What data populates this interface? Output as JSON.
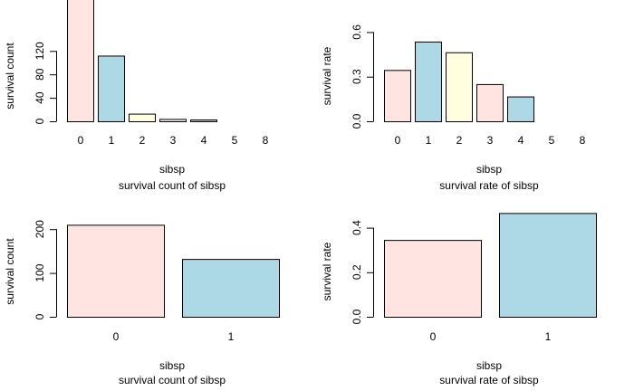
{
  "chart_data": [
    {
      "type": "bar",
      "title": "survival count of sibsp",
      "xlabel": "sibsp",
      "ylabel": "survival count",
      "categories": [
        "0",
        "1",
        "2",
        "3",
        "4",
        "5",
        "8"
      ],
      "values": [
        210,
        112,
        13,
        4,
        3,
        0,
        0
      ],
      "ylim": [
        0,
        210
      ],
      "yticks": [
        0,
        40,
        80,
        120
      ],
      "bar_colors": [
        "#ffe4e1",
        "#add8e6",
        "#ffffe0",
        "#ffe4e1",
        "#add8e6",
        "#ffe4e1",
        "#add8e6"
      ],
      "grid": false
    },
    {
      "type": "bar",
      "title": "survival rate of sibsp",
      "xlabel": "sibsp",
      "ylabel": "survival rate",
      "categories": [
        "0",
        "1",
        "2",
        "3",
        "4",
        "5",
        "8"
      ],
      "values": [
        0.345,
        0.536,
        0.464,
        0.25,
        0.167,
        0.0,
        0.0
      ],
      "ylim": [
        0,
        0.7
      ],
      "yticks": [
        0.0,
        0.3,
        0.6
      ],
      "ytick_labels": [
        "0.0",
        "0.3",
        "0.6"
      ],
      "bar_colors": [
        "#ffe4e1",
        "#add8e6",
        "#ffffe0",
        "#ffe4e1",
        "#add8e6",
        "#ffe4e1",
        "#add8e6"
      ],
      "grid": false
    },
    {
      "type": "bar",
      "title": "survival count of sibsp",
      "xlabel": "sibsp",
      "ylabel": "survival count",
      "categories": [
        "0",
        "1"
      ],
      "values": [
        210,
        132
      ],
      "ylim": [
        0,
        250
      ],
      "yticks": [
        0,
        100,
        200
      ],
      "bar_colors": [
        "#ffe4e1",
        "#add8e6"
      ],
      "grid": false
    },
    {
      "type": "bar",
      "title": "survival rate of sibsp",
      "xlabel": "sibsp",
      "ylabel": "survival rate",
      "categories": [
        "0",
        "1"
      ],
      "values": [
        0.345,
        0.466
      ],
      "ylim": [
        0,
        0.5
      ],
      "yticks": [
        0.0,
        0.2,
        0.4
      ],
      "ytick_labels": [
        "0.0",
        "0.2",
        "0.4"
      ],
      "bar_colors": [
        "#ffe4e1",
        "#add8e6"
      ],
      "grid": false
    }
  ]
}
